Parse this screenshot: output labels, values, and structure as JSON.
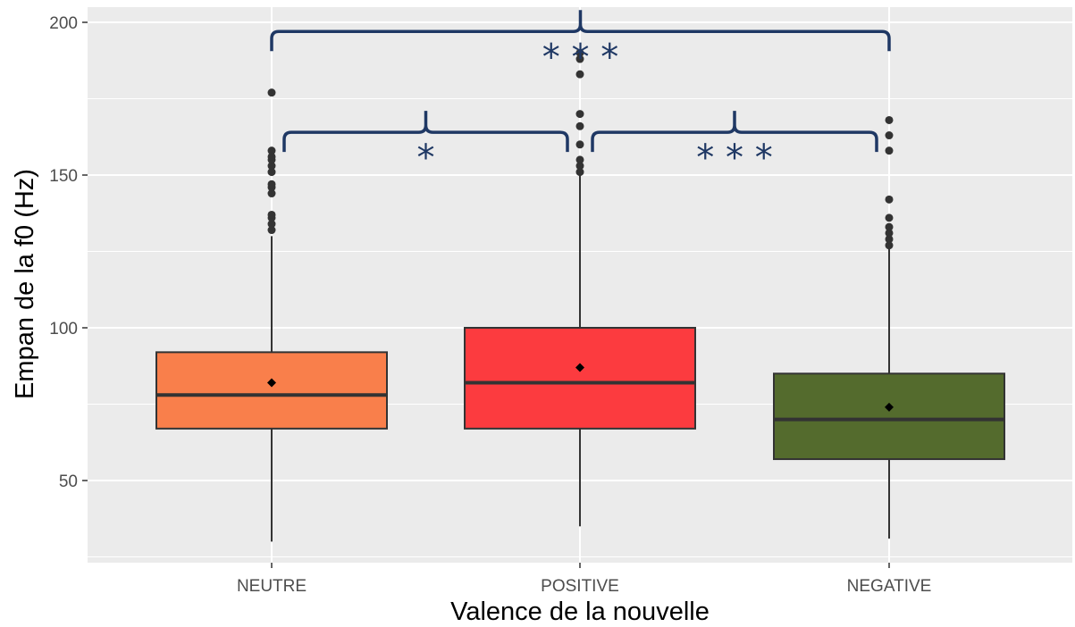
{
  "chart_data": {
    "type": "boxplot",
    "title": "",
    "xlabel": "Valence de la nouvelle",
    "ylabel": "Empan de la f0 (Hz)",
    "ylim": [
      20,
      202
    ],
    "yticks": [
      50,
      100,
      150,
      200
    ],
    "grid": true,
    "legend": "none",
    "categories": [
      "NEUTRE",
      "POSITIVE",
      "NEGATIVE"
    ],
    "boxes": [
      {
        "category": "NEUTRE",
        "color": "#f97f4b",
        "whisker_low": 30,
        "q1": 67,
        "median": 78,
        "q3": 92,
        "whisker_high": 130,
        "mean": 82,
        "outliers": [
          132,
          134,
          136,
          137,
          144,
          146,
          147,
          151,
          153,
          155,
          156,
          158,
          177
        ]
      },
      {
        "category": "POSITIVE",
        "color": "#fc3b3f",
        "whisker_low": 35,
        "q1": 67,
        "median": 82,
        "q3": 100,
        "whisker_high": 150,
        "mean": 87,
        "outliers": [
          151,
          153,
          155,
          160,
          166,
          170,
          183,
          188,
          190
        ]
      },
      {
        "category": "NEGATIVE",
        "color": "#546b2d",
        "whisker_low": 31,
        "q1": 57,
        "median": 70,
        "q3": 85,
        "whisker_high": 126,
        "mean": 74,
        "outliers": [
          127,
          129,
          131,
          133,
          136,
          142,
          158,
          163,
          168
        ]
      }
    ],
    "annotations": [
      {
        "from": "NEUTRE",
        "to": "NEGATIVE",
        "level": 197,
        "label": "* * *"
      },
      {
        "from": "NEUTRE",
        "to": "POSITIVE",
        "level": 164,
        "label": "*"
      },
      {
        "from": "POSITIVE",
        "to": "NEGATIVE",
        "level": 164,
        "label": "* * *"
      }
    ],
    "colors": {
      "panel": "#ebebeb",
      "grid": "#ffffff",
      "bracket": "#1f3864"
    }
  }
}
